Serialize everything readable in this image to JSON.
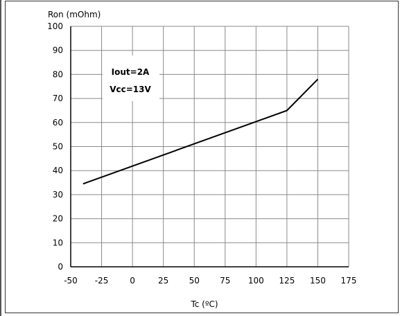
{
  "chart_data": {
    "type": "line",
    "title": "",
    "xlabel": "Tc (ºC)",
    "ylabel": "Ron (mOhm)",
    "xlim": [
      -50,
      175
    ],
    "ylim": [
      0,
      100
    ],
    "x_ticks": [
      -50,
      -25,
      0,
      25,
      50,
      75,
      100,
      125,
      150,
      175
    ],
    "y_ticks": [
      0,
      10,
      20,
      30,
      40,
      50,
      60,
      70,
      80,
      90,
      100
    ],
    "grid": true,
    "series": [
      {
        "x": [
          -40,
          125,
          150
        ],
        "y": [
          34.5,
          65,
          78
        ]
      }
    ],
    "annotations": [
      "Iout=2A",
      "Vcc=13V"
    ]
  }
}
